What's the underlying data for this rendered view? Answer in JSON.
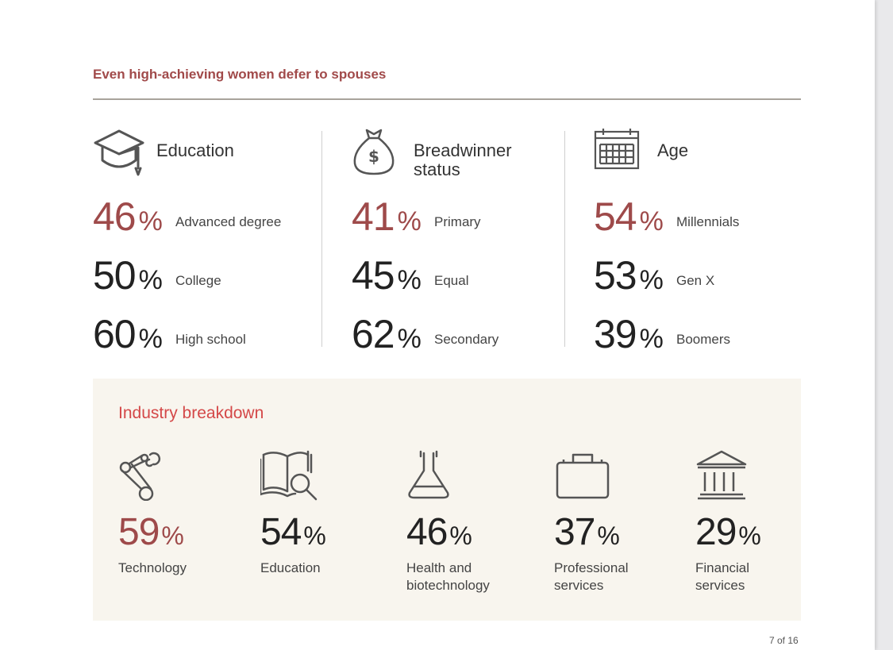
{
  "headline": "Even high-achieving women defer to spouses",
  "groups": [
    {
      "title": "Education",
      "icon": "graduation-cap-icon",
      "stats": [
        {
          "value": "46",
          "unit": "%",
          "label": "Advanced degree"
        },
        {
          "value": "50",
          "unit": "%",
          "label": "College"
        },
        {
          "value": "60",
          "unit": "%",
          "label": "High school"
        }
      ]
    },
    {
      "title_line1": "Breadwinner",
      "title_line2": "status",
      "icon": "money-bag-icon",
      "stats": [
        {
          "value": "41",
          "unit": "%",
          "label": "Primary"
        },
        {
          "value": "45",
          "unit": "%",
          "label": "Equal"
        },
        {
          "value": "62",
          "unit": "%",
          "label": "Secondary"
        }
      ]
    },
    {
      "title": "Age",
      "icon": "calendar-icon",
      "stats": [
        {
          "value": "54",
          "unit": "%",
          "label": "Millennials"
        },
        {
          "value": "53",
          "unit": "%",
          "label": "Gen X"
        },
        {
          "value": "39",
          "unit": "%",
          "label": "Boomers"
        }
      ]
    }
  ],
  "industry": {
    "title": "Industry breakdown",
    "items": [
      {
        "value": "59",
        "unit": "%",
        "label": "Technology",
        "icon": "robot-arm-icon"
      },
      {
        "value": "54",
        "unit": "%",
        "label": "Education",
        "icon": "book-magnifier-icon"
      },
      {
        "value": "46",
        "unit": "%",
        "label_line1": "Health and",
        "label_line2": "biotechnology",
        "icon": "flask-icon"
      },
      {
        "value": "37",
        "unit": "%",
        "label_line1": "Professional",
        "label_line2": "services",
        "icon": "briefcase-icon"
      },
      {
        "value": "29",
        "unit": "%",
        "label_line1": "Financial",
        "label_line2": "services",
        "icon": "bank-icon"
      }
    ]
  },
  "colors": {
    "accent": "#9e4a4a",
    "headline": "#a14a4a",
    "industry_title": "#d44848",
    "panel_bg": "#f8f5ee"
  },
  "page_number": "7 of 16"
}
